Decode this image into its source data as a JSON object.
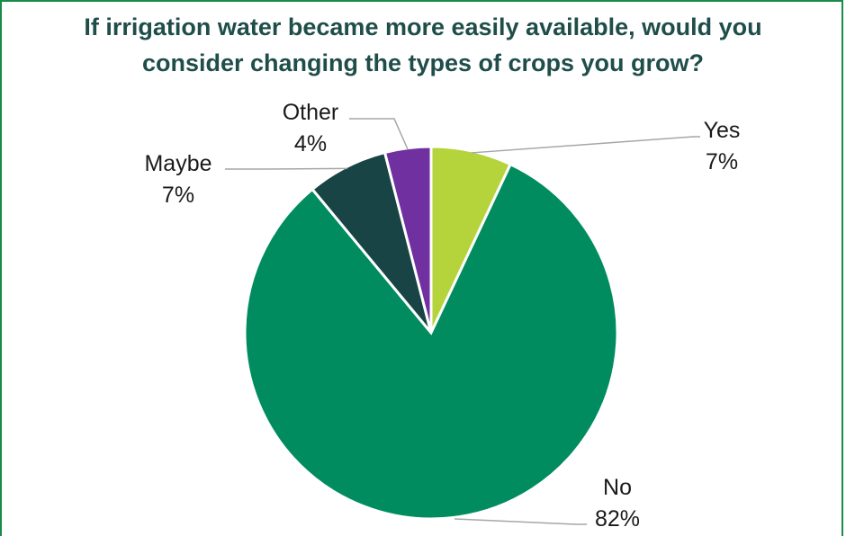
{
  "chart_data": {
    "type": "pie",
    "title_line1": "If irrigation water became more easily available, would you",
    "title_line2": "consider changing the types of crops you grow?",
    "slices": [
      {
        "label": "Yes",
        "value": 7,
        "value_label": "7%",
        "color": "#b5d33a"
      },
      {
        "label": "No",
        "value": 82,
        "value_label": "82%",
        "color": "#008c5f"
      },
      {
        "label": "Maybe",
        "value": 7,
        "value_label": "7%",
        "color": "#184445"
      },
      {
        "label": "Other",
        "value": 4,
        "value_label": "4%",
        "color": "#7030a0"
      }
    ],
    "legend": "none",
    "data_labels": "outside-with-leader-lines"
  }
}
